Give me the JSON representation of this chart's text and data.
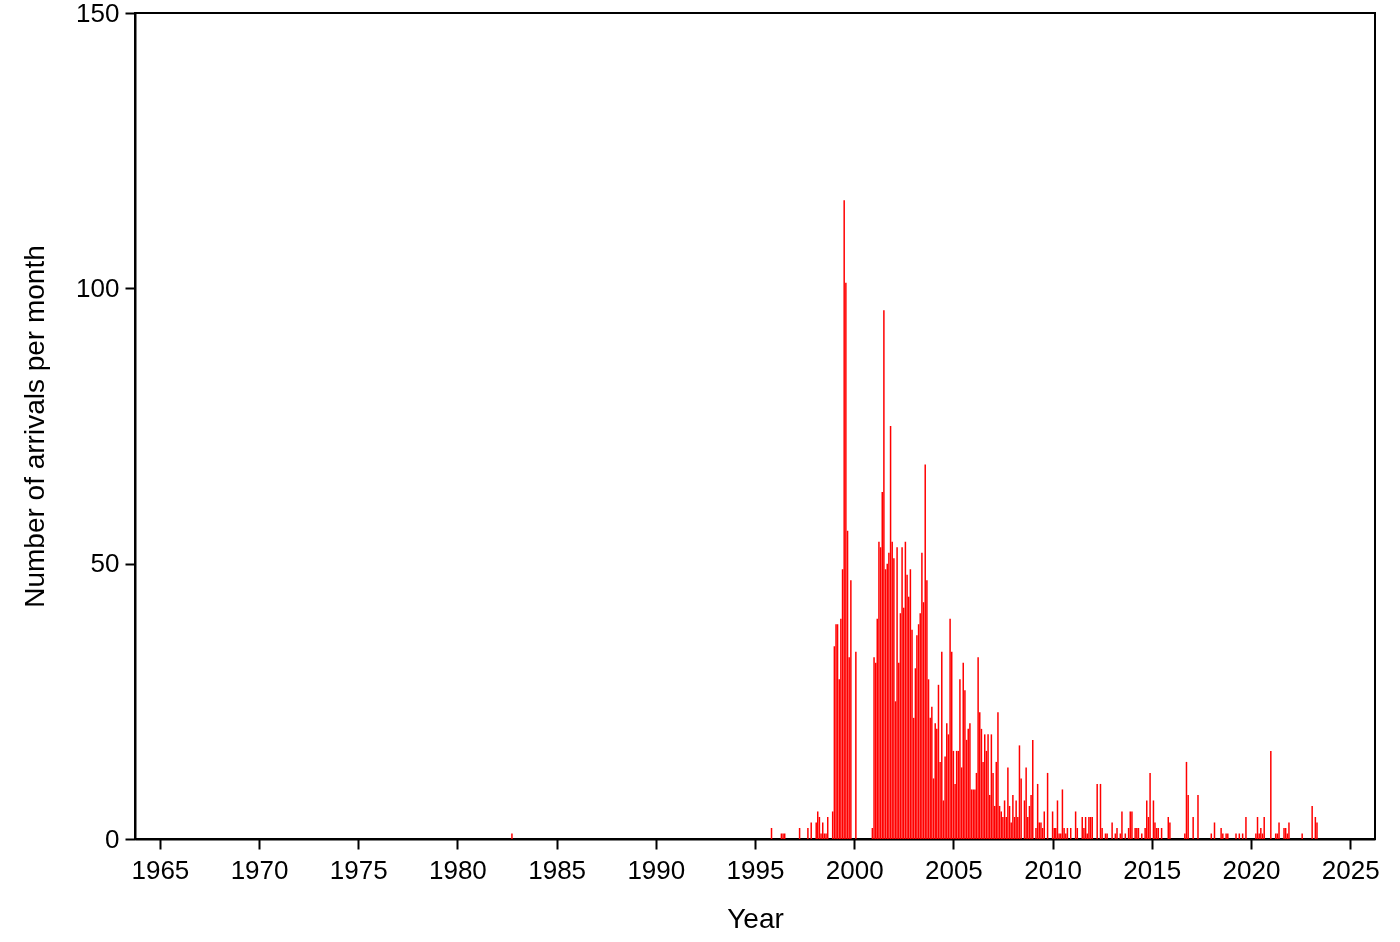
{
  "chart_data": {
    "type": "bar",
    "xlabel": "Year",
    "ylabel": "Number of arrivals per month",
    "color": "#ff0000",
    "x": [
      "1982-10",
      "1995-11",
      "1996-05",
      "1996-06",
      "1996-07",
      "1997-04",
      "1997-09",
      "1997-11",
      "1998-02",
      "1998-03",
      "1998-04",
      "1998-05",
      "1998-06",
      "1998-07",
      "1998-08",
      "1998-09",
      "1998-12",
      "1999-01",
      "1999-02",
      "1999-03",
      "1999-04",
      "1999-05",
      "1999-06",
      "1999-07",
      "1999-08",
      "1999-09",
      "1999-10",
      "1999-11",
      "2000-02",
      "2000-12",
      "2001-01",
      "2001-02",
      "2001-03",
      "2001-04",
      "2001-05",
      "2001-06",
      "2001-07",
      "2001-08",
      "2001-09",
      "2001-10",
      "2001-11",
      "2001-12",
      "2002-01",
      "2002-02",
      "2002-03",
      "2002-04",
      "2002-05",
      "2002-06",
      "2002-07",
      "2002-08",
      "2002-09",
      "2002-10",
      "2002-11",
      "2002-12",
      "2003-01",
      "2003-02",
      "2003-03",
      "2003-04",
      "2003-05",
      "2003-06",
      "2003-07",
      "2003-08",
      "2003-09",
      "2003-10",
      "2003-11",
      "2003-12",
      "2004-01",
      "2004-02",
      "2004-03",
      "2004-04",
      "2004-05",
      "2004-06",
      "2004-07",
      "2004-08",
      "2004-09",
      "2004-10",
      "2004-11",
      "2004-12",
      "2005-01",
      "2005-02",
      "2005-03",
      "2005-04",
      "2005-05",
      "2005-06",
      "2005-07",
      "2005-08",
      "2005-09",
      "2005-10",
      "2005-11",
      "2005-12",
      "2006-01",
      "2006-02",
      "2006-03",
      "2006-04",
      "2006-05",
      "2006-06",
      "2006-07",
      "2006-08",
      "2006-09",
      "2006-10",
      "2006-11",
      "2006-12",
      "2007-01",
      "2007-02",
      "2007-03",
      "2007-04",
      "2007-05",
      "2007-06",
      "2007-07",
      "2007-08",
      "2007-09",
      "2007-10",
      "2007-11",
      "2007-12",
      "2008-01",
      "2008-02",
      "2008-03",
      "2008-04",
      "2008-05",
      "2008-06",
      "2008-08",
      "2008-09",
      "2008-10",
      "2008-11",
      "2008-12",
      "2009-01",
      "2009-03",
      "2009-04",
      "2009-05",
      "2009-06",
      "2009-07",
      "2009-08",
      "2009-10",
      "2010-01",
      "2010-02",
      "2010-03",
      "2010-04",
      "2010-05",
      "2010-06",
      "2010-07",
      "2010-08",
      "2010-09",
      "2010-10",
      "2010-12",
      "2011-03",
      "2011-04",
      "2011-07",
      "2011-08",
      "2011-09",
      "2011-10",
      "2011-11",
      "2011-12",
      "2012-01",
      "2012-04",
      "2012-06",
      "2012-07",
      "2012-09",
      "2012-10",
      "2013-01",
      "2013-03",
      "2013-04",
      "2013-06",
      "2013-07",
      "2013-09",
      "2013-11",
      "2013-12",
      "2014-01",
      "2014-03",
      "2014-04",
      "2014-05",
      "2014-07",
      "2014-09",
      "2014-10",
      "2014-11",
      "2014-12",
      "2015-02",
      "2015-03",
      "2015-04",
      "2015-05",
      "2015-07",
      "2015-11",
      "2015-12",
      "2016-09",
      "2016-10",
      "2016-11",
      "2017-02",
      "2017-05",
      "2018-01",
      "2018-03",
      "2018-07",
      "2018-08",
      "2018-10",
      "2018-11",
      "2019-04",
      "2019-06",
      "2019-08",
      "2019-10",
      "2020-04",
      "2020-05",
      "2020-06",
      "2020-07",
      "2020-08",
      "2020-09",
      "2021-01",
      "2021-04",
      "2021-05",
      "2021-06",
      "2021-09",
      "2021-10",
      "2021-11",
      "2021-12",
      "2022-08",
      "2023-02",
      "2023-04",
      "2023-05"
    ],
    "values": [
      1,
      2,
      1,
      1,
      1,
      2,
      2,
      3,
      3,
      5,
      4,
      1,
      3,
      1,
      1,
      4,
      5,
      35,
      39,
      39,
      29,
      40,
      49,
      116,
      101,
      56,
      33,
      47,
      34,
      2,
      33,
      32,
      40,
      54,
      53,
      63,
      96,
      49,
      50,
      52,
      75,
      54,
      51,
      25,
      53,
      32,
      41,
      53,
      42,
      54,
      48,
      44,
      49,
      38,
      22,
      31,
      37,
      39,
      41,
      52,
      43,
      68,
      47,
      29,
      22,
      24,
      11,
      21,
      20,
      28,
      14,
      34,
      7,
      15,
      21,
      19,
      40,
      34,
      16,
      10,
      16,
      16,
      29,
      13,
      32,
      27,
      18,
      20,
      21,
      9,
      9,
      9,
      12,
      33,
      23,
      20,
      14,
      19,
      16,
      19,
      8,
      19,
      12,
      6,
      14,
      23,
      6,
      5,
      4,
      7,
      4,
      13,
      6,
      3,
      8,
      4,
      7,
      4,
      17,
      11,
      7,
      13,
      4,
      6,
      8,
      18,
      2,
      10,
      3,
      3,
      2,
      5,
      12,
      5,
      2,
      2,
      7,
      1,
      1,
      9,
      2,
      1,
      2,
      2,
      5,
      2,
      4,
      2,
      4,
      1,
      4,
      4,
      4,
      10,
      10,
      2,
      1,
      1,
      3,
      1,
      2,
      1,
      5,
      1,
      2,
      5,
      5,
      2,
      2,
      2,
      1,
      2,
      7,
      4,
      12,
      7,
      3,
      2,
      2,
      2,
      4,
      3,
      1,
      14,
      8,
      4,
      8,
      1,
      3,
      2,
      1,
      1,
      1,
      1,
      1,
      1,
      4,
      1,
      4,
      1,
      2,
      1,
      4,
      16,
      1,
      1,
      3,
      2,
      2,
      1,
      3,
      1,
      6,
      4,
      3
    ],
    "xlim": [
      "1964",
      "2026"
    ],
    "xticks": [
      "1965",
      "1970",
      "1975",
      "1980",
      "1985",
      "1990",
      "1995",
      "2000",
      "2005",
      "2010",
      "2015",
      "2020",
      "2025"
    ],
    "ylim": [
      0,
      150
    ],
    "yticks": [
      0,
      50,
      100,
      150
    ],
    "grid": false
  }
}
